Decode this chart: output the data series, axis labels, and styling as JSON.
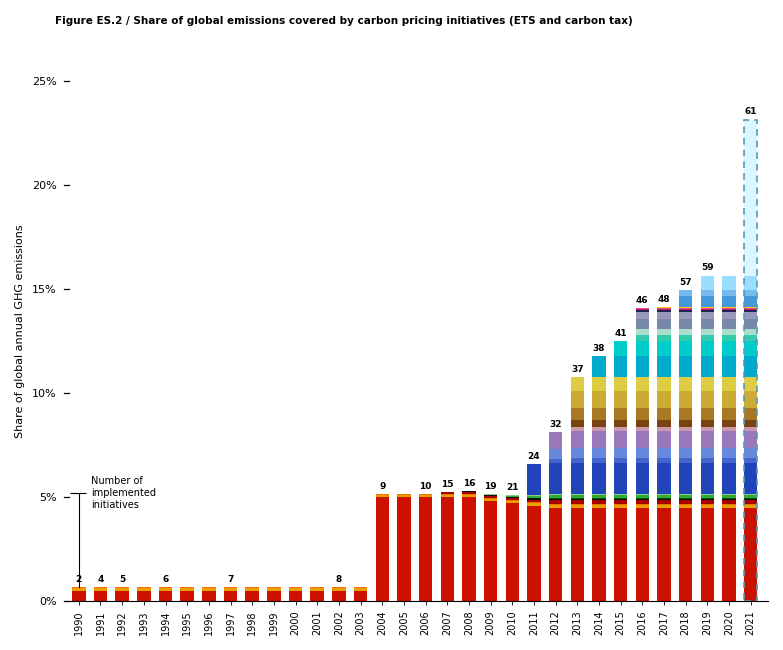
{
  "title": "Figure ES.2 / Share of global emissions covered by carbon pricing initiatives (ETS and carbon tax)",
  "ylabel": "Share of global annual GHG emissions",
  "years": [
    1990,
    1991,
    1992,
    1993,
    1994,
    1995,
    1996,
    1997,
    1998,
    1999,
    2000,
    2001,
    2002,
    2003,
    2004,
    2005,
    2006,
    2007,
    2008,
    2009,
    2010,
    2011,
    2012,
    2013,
    2014,
    2015,
    2016,
    2017,
    2018,
    2019,
    2020,
    2021
  ],
  "n_initiatives": [
    2,
    4,
    5,
    null,
    6,
    null,
    null,
    7,
    null,
    null,
    null,
    null,
    8,
    null,
    9,
    null,
    10,
    15,
    16,
    19,
    21,
    24,
    32,
    37,
    38,
    41,
    46,
    48,
    57,
    59,
    null,
    61
  ],
  "layers": [
    {
      "color": "#cc1100",
      "values": [
        0.5,
        0.5,
        0.5,
        0.5,
        0.5,
        0.5,
        0.5,
        0.5,
        0.5,
        0.5,
        0.5,
        0.5,
        0.5,
        0.5,
        5.0,
        5.0,
        5.0,
        5.0,
        5.0,
        4.8,
        4.7,
        4.6,
        4.5,
        4.5,
        4.5,
        4.5,
        4.5,
        4.5,
        4.5,
        4.5,
        4.5,
        4.5
      ]
    },
    {
      "color": "#e8a000",
      "values": [
        0.13,
        0.13,
        0.13,
        0.13,
        0.13,
        0.13,
        0.13,
        0.13,
        0.13,
        0.13,
        0.13,
        0.13,
        0.13,
        0.13,
        0.13,
        0.13,
        0.13,
        0.13,
        0.13,
        0.13,
        0.13,
        0.13,
        0.13,
        0.13,
        0.13,
        0.13,
        0.13,
        0.13,
        0.13,
        0.13,
        0.13,
        0.13
      ]
    },
    {
      "color": "#f07000",
      "values": [
        0.04,
        0.04,
        0.04,
        0.04,
        0.04,
        0.04,
        0.04,
        0.04,
        0.04,
        0.04,
        0.04,
        0.04,
        0.04,
        0.04,
        0.04,
        0.04,
        0.04,
        0.04,
        0.04,
        0.04,
        0.04,
        0.04,
        0.04,
        0.04,
        0.04,
        0.04,
        0.04,
        0.04,
        0.04,
        0.04,
        0.04,
        0.04
      ]
    },
    {
      "color": "#aa0000",
      "values": [
        0.0,
        0.0,
        0.0,
        0.0,
        0.0,
        0.0,
        0.0,
        0.0,
        0.0,
        0.0,
        0.0,
        0.0,
        0.0,
        0.0,
        0.0,
        0.0,
        0.0,
        0.08,
        0.08,
        0.08,
        0.08,
        0.12,
        0.18,
        0.18,
        0.18,
        0.18,
        0.18,
        0.18,
        0.18,
        0.18,
        0.18,
        0.18
      ]
    },
    {
      "color": "#111111",
      "values": [
        0.0,
        0.0,
        0.0,
        0.0,
        0.0,
        0.0,
        0.0,
        0.0,
        0.0,
        0.0,
        0.0,
        0.0,
        0.0,
        0.0,
        0.0,
        0.0,
        0.0,
        0.0,
        0.04,
        0.04,
        0.04,
        0.06,
        0.08,
        0.08,
        0.08,
        0.08,
        0.08,
        0.08,
        0.08,
        0.08,
        0.08,
        0.08
      ]
    },
    {
      "color": "#005500",
      "values": [
        0.0,
        0.0,
        0.0,
        0.0,
        0.0,
        0.0,
        0.0,
        0.0,
        0.0,
        0.0,
        0.0,
        0.0,
        0.0,
        0.0,
        0.0,
        0.0,
        0.0,
        0.0,
        0.0,
        0.0,
        0.0,
        0.0,
        0.04,
        0.04,
        0.04,
        0.04,
        0.04,
        0.04,
        0.04,
        0.04,
        0.04,
        0.04
      ]
    },
    {
      "color": "#33aa33",
      "values": [
        0.0,
        0.0,
        0.0,
        0.0,
        0.0,
        0.0,
        0.0,
        0.0,
        0.0,
        0.0,
        0.0,
        0.0,
        0.0,
        0.0,
        0.0,
        0.0,
        0.0,
        0.0,
        0.0,
        0.0,
        0.05,
        0.1,
        0.12,
        0.12,
        0.12,
        0.12,
        0.12,
        0.12,
        0.12,
        0.12,
        0.12,
        0.12
      ]
    },
    {
      "color": "#88cc88",
      "values": [
        0.0,
        0.0,
        0.0,
        0.0,
        0.0,
        0.0,
        0.0,
        0.0,
        0.0,
        0.0,
        0.0,
        0.0,
        0.0,
        0.0,
        0.0,
        0.0,
        0.0,
        0.0,
        0.0,
        0.05,
        0.05,
        0.05,
        0.05,
        0.05,
        0.05,
        0.05,
        0.05,
        0.05,
        0.05,
        0.05,
        0.05,
        0.05
      ]
    },
    {
      "color": "#2244bb",
      "values": [
        0.0,
        0.0,
        0.0,
        0.0,
        0.0,
        0.0,
        0.0,
        0.0,
        0.0,
        0.0,
        0.0,
        0.0,
        0.0,
        0.0,
        0.0,
        0.0,
        0.0,
        0.0,
        0.0,
        0.0,
        0.0,
        1.5,
        1.5,
        1.5,
        1.5,
        1.5,
        1.5,
        1.5,
        1.5,
        1.5,
        1.5,
        1.5
      ]
    },
    {
      "color": "#4466cc",
      "values": [
        0.0,
        0.0,
        0.0,
        0.0,
        0.0,
        0.0,
        0.0,
        0.0,
        0.0,
        0.0,
        0.0,
        0.0,
        0.0,
        0.0,
        0.0,
        0.0,
        0.0,
        0.0,
        0.0,
        0.0,
        0.0,
        0.0,
        0.2,
        0.25,
        0.25,
        0.25,
        0.25,
        0.25,
        0.25,
        0.25,
        0.25,
        0.25
      ]
    },
    {
      "color": "#6688dd",
      "values": [
        0.0,
        0.0,
        0.0,
        0.0,
        0.0,
        0.0,
        0.0,
        0.0,
        0.0,
        0.0,
        0.0,
        0.0,
        0.0,
        0.0,
        0.0,
        0.0,
        0.0,
        0.0,
        0.0,
        0.0,
        0.0,
        0.0,
        0.5,
        0.5,
        0.5,
        0.5,
        0.5,
        0.5,
        0.5,
        0.5,
        0.5,
        0.5
      ]
    },
    {
      "color": "#9977bb",
      "values": [
        0.0,
        0.0,
        0.0,
        0.0,
        0.0,
        0.0,
        0.0,
        0.0,
        0.0,
        0.0,
        0.0,
        0.0,
        0.0,
        0.0,
        0.0,
        0.0,
        0.0,
        0.0,
        0.0,
        0.0,
        0.0,
        0.0,
        0.8,
        0.8,
        0.8,
        0.8,
        0.8,
        0.8,
        0.8,
        0.8,
        0.8,
        0.8
      ]
    },
    {
      "color": "#cc99aa",
      "values": [
        0.0,
        0.0,
        0.0,
        0.0,
        0.0,
        0.0,
        0.0,
        0.0,
        0.0,
        0.0,
        0.0,
        0.0,
        0.0,
        0.0,
        0.0,
        0.0,
        0.0,
        0.0,
        0.0,
        0.0,
        0.0,
        0.0,
        0.0,
        0.2,
        0.2,
        0.2,
        0.2,
        0.2,
        0.2,
        0.2,
        0.2,
        0.2
      ]
    },
    {
      "color": "#774411",
      "values": [
        0.0,
        0.0,
        0.0,
        0.0,
        0.0,
        0.0,
        0.0,
        0.0,
        0.0,
        0.0,
        0.0,
        0.0,
        0.0,
        0.0,
        0.0,
        0.0,
        0.0,
        0.0,
        0.0,
        0.0,
        0.0,
        0.0,
        0.0,
        0.3,
        0.3,
        0.3,
        0.3,
        0.3,
        0.3,
        0.3,
        0.3,
        0.3
      ]
    },
    {
      "color": "#aa7722",
      "values": [
        0.0,
        0.0,
        0.0,
        0.0,
        0.0,
        0.0,
        0.0,
        0.0,
        0.0,
        0.0,
        0.0,
        0.0,
        0.0,
        0.0,
        0.0,
        0.0,
        0.0,
        0.0,
        0.0,
        0.0,
        0.0,
        0.0,
        0.0,
        0.6,
        0.6,
        0.6,
        0.6,
        0.6,
        0.6,
        0.6,
        0.6,
        0.6
      ]
    },
    {
      "color": "#ccaa33",
      "values": [
        0.0,
        0.0,
        0.0,
        0.0,
        0.0,
        0.0,
        0.0,
        0.0,
        0.0,
        0.0,
        0.0,
        0.0,
        0.0,
        0.0,
        0.0,
        0.0,
        0.0,
        0.0,
        0.0,
        0.0,
        0.0,
        0.0,
        0.0,
        0.8,
        0.8,
        0.8,
        0.8,
        0.8,
        0.8,
        0.8,
        0.8,
        0.8
      ]
    },
    {
      "color": "#ddcc44",
      "values": [
        0.0,
        0.0,
        0.0,
        0.0,
        0.0,
        0.0,
        0.0,
        0.0,
        0.0,
        0.0,
        0.0,
        0.0,
        0.0,
        0.0,
        0.0,
        0.0,
        0.0,
        0.0,
        0.0,
        0.0,
        0.0,
        0.0,
        0.0,
        0.7,
        0.7,
        0.7,
        0.7,
        0.7,
        0.7,
        0.7,
        0.7,
        0.7
      ]
    },
    {
      "color": "#00aacc",
      "values": [
        0.0,
        0.0,
        0.0,
        0.0,
        0.0,
        0.0,
        0.0,
        0.0,
        0.0,
        0.0,
        0.0,
        0.0,
        0.0,
        0.0,
        0.0,
        0.0,
        0.0,
        0.0,
        0.0,
        0.0,
        0.0,
        0.0,
        0.0,
        0.0,
        1.0,
        1.0,
        1.0,
        1.0,
        1.0,
        1.0,
        1.0,
        1.0
      ]
    },
    {
      "color": "#00cccc",
      "values": [
        0.0,
        0.0,
        0.0,
        0.0,
        0.0,
        0.0,
        0.0,
        0.0,
        0.0,
        0.0,
        0.0,
        0.0,
        0.0,
        0.0,
        0.0,
        0.0,
        0.0,
        0.0,
        0.0,
        0.0,
        0.0,
        0.0,
        0.0,
        0.0,
        0.0,
        0.7,
        0.7,
        0.7,
        0.7,
        0.7,
        0.7,
        0.7
      ]
    },
    {
      "color": "#33ccaa",
      "values": [
        0.0,
        0.0,
        0.0,
        0.0,
        0.0,
        0.0,
        0.0,
        0.0,
        0.0,
        0.0,
        0.0,
        0.0,
        0.0,
        0.0,
        0.0,
        0.0,
        0.0,
        0.0,
        0.0,
        0.0,
        0.0,
        0.0,
        0.0,
        0.0,
        0.0,
        0.0,
        0.3,
        0.3,
        0.3,
        0.3,
        0.3,
        0.3
      ]
    },
    {
      "color": "#aaddcc",
      "values": [
        0.0,
        0.0,
        0.0,
        0.0,
        0.0,
        0.0,
        0.0,
        0.0,
        0.0,
        0.0,
        0.0,
        0.0,
        0.0,
        0.0,
        0.0,
        0.0,
        0.0,
        0.0,
        0.0,
        0.0,
        0.0,
        0.0,
        0.0,
        0.0,
        0.0,
        0.0,
        0.3,
        0.3,
        0.3,
        0.3,
        0.3,
        0.3
      ]
    },
    {
      "color": "#7788aa",
      "values": [
        0.0,
        0.0,
        0.0,
        0.0,
        0.0,
        0.0,
        0.0,
        0.0,
        0.0,
        0.0,
        0.0,
        0.0,
        0.0,
        0.0,
        0.0,
        0.0,
        0.0,
        0.0,
        0.0,
        0.0,
        0.0,
        0.0,
        0.0,
        0.0,
        0.0,
        0.0,
        0.5,
        0.5,
        0.5,
        0.5,
        0.5,
        0.5
      ]
    },
    {
      "color": "#9999bb",
      "values": [
        0.0,
        0.0,
        0.0,
        0.0,
        0.0,
        0.0,
        0.0,
        0.0,
        0.0,
        0.0,
        0.0,
        0.0,
        0.0,
        0.0,
        0.0,
        0.0,
        0.0,
        0.0,
        0.0,
        0.0,
        0.0,
        0.0,
        0.0,
        0.0,
        0.0,
        0.0,
        0.3,
        0.3,
        0.3,
        0.3,
        0.3,
        0.3
      ]
    },
    {
      "color": "#222255",
      "values": [
        0.0,
        0.0,
        0.0,
        0.0,
        0.0,
        0.0,
        0.0,
        0.0,
        0.0,
        0.0,
        0.0,
        0.0,
        0.0,
        0.0,
        0.0,
        0.0,
        0.0,
        0.0,
        0.0,
        0.0,
        0.0,
        0.0,
        0.0,
        0.0,
        0.0,
        0.0,
        0.1,
        0.1,
        0.1,
        0.1,
        0.1,
        0.1
      ]
    },
    {
      "color": "#bb2266",
      "values": [
        0.0,
        0.0,
        0.0,
        0.0,
        0.0,
        0.0,
        0.0,
        0.0,
        0.0,
        0.0,
        0.0,
        0.0,
        0.0,
        0.0,
        0.0,
        0.0,
        0.0,
        0.0,
        0.0,
        0.0,
        0.0,
        0.0,
        0.0,
        0.0,
        0.0,
        0.0,
        0.05,
        0.05,
        0.05,
        0.05,
        0.05,
        0.05
      ]
    },
    {
      "color": "#ee4488",
      "values": [
        0.0,
        0.0,
        0.0,
        0.0,
        0.0,
        0.0,
        0.0,
        0.0,
        0.0,
        0.0,
        0.0,
        0.0,
        0.0,
        0.0,
        0.0,
        0.0,
        0.0,
        0.0,
        0.0,
        0.0,
        0.0,
        0.0,
        0.0,
        0.0,
        0.0,
        0.0,
        0.04,
        0.04,
        0.04,
        0.04,
        0.04,
        0.04
      ]
    },
    {
      "color": "#ffcc00",
      "values": [
        0.0,
        0.0,
        0.0,
        0.0,
        0.0,
        0.0,
        0.0,
        0.0,
        0.0,
        0.0,
        0.0,
        0.0,
        0.0,
        0.0,
        0.0,
        0.0,
        0.0,
        0.0,
        0.0,
        0.0,
        0.0,
        0.0,
        0.0,
        0.0,
        0.0,
        0.0,
        0.0,
        0.08,
        0.08,
        0.08,
        0.08,
        0.08
      ]
    },
    {
      "color": "#4499dd",
      "values": [
        0.0,
        0.0,
        0.0,
        0.0,
        0.0,
        0.0,
        0.0,
        0.0,
        0.0,
        0.0,
        0.0,
        0.0,
        0.0,
        0.0,
        0.0,
        0.0,
        0.0,
        0.0,
        0.0,
        0.0,
        0.0,
        0.0,
        0.0,
        0.0,
        0.0,
        0.0,
        0.0,
        0.0,
        0.5,
        0.5,
        0.5,
        0.5
      ]
    },
    {
      "color": "#77bbee",
      "values": [
        0.0,
        0.0,
        0.0,
        0.0,
        0.0,
        0.0,
        0.0,
        0.0,
        0.0,
        0.0,
        0.0,
        0.0,
        0.0,
        0.0,
        0.0,
        0.0,
        0.0,
        0.0,
        0.0,
        0.0,
        0.0,
        0.0,
        0.0,
        0.0,
        0.0,
        0.0,
        0.0,
        0.0,
        0.3,
        0.3,
        0.3,
        0.3
      ]
    },
    {
      "color": "#99ddff",
      "values": [
        0.0,
        0.0,
        0.0,
        0.0,
        0.0,
        0.0,
        0.0,
        0.0,
        0.0,
        0.0,
        0.0,
        0.0,
        0.0,
        0.0,
        0.0,
        0.0,
        0.0,
        0.0,
        0.0,
        0.0,
        0.0,
        0.0,
        0.0,
        0.0,
        0.0,
        0.0,
        0.0,
        0.0,
        0.0,
        0.7,
        0.7,
        0.7
      ]
    },
    {
      "color": "#bbeeff",
      "values": [
        0.0,
        0.0,
        0.0,
        0.0,
        0.0,
        0.0,
        0.0,
        0.0,
        0.0,
        0.0,
        0.0,
        0.0,
        0.0,
        0.0,
        0.0,
        0.0,
        0.0,
        0.0,
        0.0,
        0.0,
        0.0,
        0.0,
        0.0,
        0.0,
        0.0,
        0.0,
        0.0,
        0.0,
        0.0,
        0.0,
        0.0,
        7.5
      ]
    }
  ],
  "ylim": [
    0,
    26
  ],
  "yticks": [
    0,
    5,
    10,
    15,
    20,
    25
  ],
  "ytick_labels": [
    "0%",
    "5%",
    "10%",
    "15%",
    "20%",
    "25%"
  ],
  "bg_color": "#ffffff"
}
